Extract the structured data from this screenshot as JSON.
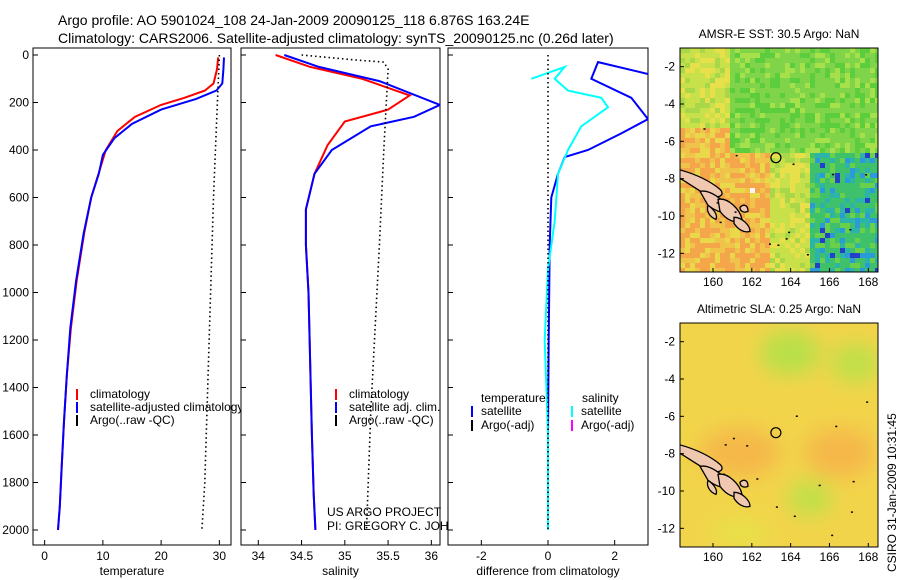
{
  "header": {
    "line1": "Argo profile: AO 5901024_108 24-Jan-2009 20090125_118 6.876S 163.24E",
    "line2": "Climatology: CARS2006. Satellite-adjusted climatology: synTS_20090125.nc (0.26d later)"
  },
  "colors": {
    "climatology": "#ff0000",
    "satellite": "#0000ff",
    "sat_salinity": "#00ffff",
    "argo_adj_salinity": "#ff00ff",
    "argo": "#000000"
  },
  "chart_data": [
    {
      "id": "temperature",
      "type": "line",
      "xlabel": "temperature",
      "ylabel": "",
      "xlim": [
        -2,
        32
      ],
      "ylim": [
        2100,
        0
      ],
      "xticks": [
        0,
        10,
        20,
        30
      ],
      "yticks": [
        0,
        200,
        400,
        600,
        800,
        1000,
        1200,
        1400,
        1600,
        1800,
        2000
      ],
      "series": [
        {
          "name": "climatology",
          "color": "#ff0000",
          "style": "solid",
          "x": [
            29.8,
            29.6,
            29.0,
            27.5,
            24.0,
            20.0,
            15.5,
            12.5,
            10.5,
            9.5,
            8.0,
            6.8,
            5.5,
            4.5,
            3.8,
            3.3,
            2.9,
            2.6,
            2.3
          ],
          "y": [
            10,
            60,
            120,
            150,
            180,
            210,
            260,
            320,
            400,
            480,
            600,
            750,
            950,
            1150,
            1350,
            1550,
            1750,
            1900,
            2000
          ]
        },
        {
          "name": "satellite-adjusted climatology",
          "color": "#0000ff",
          "style": "solid",
          "x": [
            30.8,
            30.7,
            30.5,
            29.5,
            26.0,
            20.0,
            15.0,
            12.0,
            10.0,
            9.3,
            8.0,
            6.7,
            5.4,
            4.4,
            3.8,
            3.3,
            2.9,
            2.6,
            2.3
          ],
          "y": [
            10,
            60,
            120,
            150,
            185,
            230,
            290,
            350,
            420,
            500,
            600,
            750,
            950,
            1150,
            1350,
            1550,
            1750,
            1900,
            2000
          ]
        },
        {
          "name": "Argo(..raw -QC)",
          "color": "#000000",
          "style": "dotted",
          "x": [
            30.0,
            29.5,
            29.0,
            28.5,
            28.0,
            27.5,
            27.0
          ],
          "y": [
            0,
            300,
            600,
            1000,
            1400,
            1800,
            2000
          ]
        }
      ],
      "legend": [
        "climatology",
        "satellite-adjusted climatology",
        "Argo(..raw -QC)"
      ]
    },
    {
      "id": "salinity",
      "type": "line",
      "xlabel": "salinity",
      "ylabel": "",
      "xlim": [
        33.8,
        36.1
      ],
      "ylim": [
        2100,
        0
      ],
      "xticks": [
        34,
        34.5,
        35,
        35.5,
        36
      ],
      "yticks": [],
      "series": [
        {
          "name": "climatology",
          "color": "#ff0000",
          "style": "solid",
          "x": [
            34.2,
            34.6,
            35.2,
            35.75,
            35.5,
            35.0,
            34.8,
            34.65,
            34.55,
            34.55,
            34.58,
            34.6,
            34.62,
            34.64,
            34.66
          ],
          "y": [
            0,
            50,
            100,
            170,
            230,
            280,
            380,
            500,
            650,
            800,
            1000,
            1300,
            1600,
            1850,
            2000
          ]
        },
        {
          "name": "satellite adj. clim.",
          "color": "#0000ff",
          "style": "solid",
          "x": [
            34.3,
            34.7,
            35.4,
            36.1,
            35.8,
            35.3,
            34.85,
            34.65,
            34.55,
            34.55,
            34.58,
            34.6,
            34.62,
            34.64,
            34.66
          ],
          "y": [
            0,
            50,
            110,
            210,
            260,
            300,
            400,
            500,
            650,
            800,
            1000,
            1300,
            1600,
            1850,
            2000
          ]
        },
        {
          "name": "Argo(..raw -QC)",
          "color": "#000000",
          "style": "dotted",
          "x": [
            34.5,
            35.1,
            35.45,
            35.5,
            35.45,
            35.4,
            35.3,
            35.25
          ],
          "y": [
            0,
            20,
            30,
            60,
            400,
            800,
            1500,
            2000
          ]
        }
      ],
      "legend": [
        "climatology",
        "satellite adj. clim.",
        "Argo(..raw -QC)"
      ],
      "annotations": [
        "US ARGO PROJECT",
        "PI: GREGORY C. JOHNSON"
      ]
    },
    {
      "id": "difference",
      "type": "line",
      "xlabel": "difference from climatology",
      "ylabel": "",
      "xlim": [
        -3,
        3
      ],
      "ylim": [
        2100,
        0
      ],
      "xticks": [
        -2,
        0,
        2
      ],
      "yticks": [],
      "series": [
        {
          "name": "satellite (temperature)",
          "color": "#0000ff",
          "style": "solid",
          "x": [
            3.0,
            1.5,
            1.3,
            2.5,
            3.0,
            2.2,
            1.2,
            0.5,
            0.3,
            0.1,
            0.05,
            0.02,
            0.0,
            0.0
          ],
          "y": [
            80,
            30,
            100,
            180,
            270,
            330,
            400,
            430,
            500,
            600,
            800,
            1200,
            1600,
            2000
          ]
        },
        {
          "name": "satellite (salinity)",
          "color": "#00ffff",
          "style": "solid",
          "x": [
            -0.5,
            0.5,
            0.2,
            0.6,
            1.6,
            1.8,
            1.0,
            0.6,
            0.3,
            0.2,
            0.0,
            -0.1,
            0.0,
            0.0
          ],
          "y": [
            100,
            50,
            100,
            150,
            180,
            220,
            300,
            400,
            500,
            700,
            900,
            1200,
            1600,
            2000
          ]
        },
        {
          "name": "zero line",
          "color": "#000000",
          "style": "dotted",
          "x": [
            0,
            0
          ],
          "y": [
            0,
            2000
          ]
        }
      ],
      "legend_headers": [
        "temperature",
        "salinity"
      ],
      "legend": [
        "satellite",
        "Argo(-adj)",
        "satellite",
        "Argo(-adj)"
      ]
    },
    {
      "id": "sst-map",
      "type": "heatmap",
      "title": "AMSR-E SST: 30.5 Argo: NaN",
      "xticks": [
        160,
        162,
        164,
        166,
        168
      ],
      "yticks": [
        -2,
        -4,
        -6,
        -8,
        -10,
        -12
      ],
      "xlim": [
        158.3,
        168.5
      ],
      "ylim": [
        -13,
        -1
      ],
      "marker": {
        "lon": 163.24,
        "lat": -6.876
      }
    },
    {
      "id": "sla-map",
      "type": "heatmap",
      "title": "Altimetric SLA: 0.25 Argo: NaN",
      "xticks": [
        160,
        162,
        164,
        166,
        168
      ],
      "yticks": [
        -2,
        -4,
        -6,
        -8,
        -10,
        -12
      ],
      "xlim": [
        158.3,
        168.5
      ],
      "ylim": [
        -13,
        -1
      ],
      "marker": {
        "lon": 163.24,
        "lat": -6.876
      }
    }
  ],
  "sidebar": {
    "timestamp": "CSIRO 31-Jan-2009 10:31:45"
  }
}
